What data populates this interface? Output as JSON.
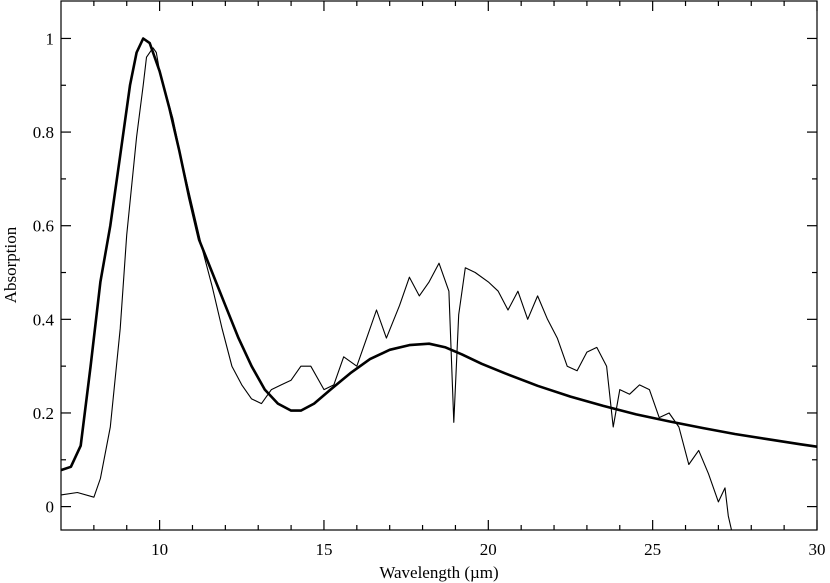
{
  "chart_data": {
    "type": "line",
    "xlabel": "Wavelength (µm)",
    "ylabel": "Absorption",
    "xlim": [
      7,
      30
    ],
    "ylim": [
      -0.05,
      1.08
    ],
    "xticks": [
      10,
      15,
      20,
      25,
      30
    ],
    "yticks": [
      0,
      0.2,
      0.4,
      0.6,
      0.8,
      1
    ],
    "ytick_labels": [
      "0",
      "0.2",
      "0.4",
      "0.6",
      "0.8",
      "1"
    ],
    "grid": false,
    "legend": "none",
    "series": [
      {
        "style": "thick-smooth",
        "x": [
          7.0,
          7.3,
          7.6,
          7.9,
          8.2,
          8.5,
          8.8,
          9.1,
          9.3,
          9.5,
          9.7,
          10.0,
          10.3,
          10.6,
          10.9,
          11.2,
          11.6,
          12.0,
          12.4,
          12.8,
          13.2,
          13.6,
          14.0,
          14.3,
          14.7,
          15.2,
          15.8,
          16.4,
          17.0,
          17.6,
          18.2,
          18.7,
          19.2,
          19.8,
          20.5,
          21.5,
          22.5,
          23.5,
          24.5,
          25.5,
          26.5,
          27.5,
          28.5,
          29.5,
          30.0
        ],
        "y": [
          0.078,
          0.085,
          0.13,
          0.3,
          0.48,
          0.6,
          0.75,
          0.9,
          0.97,
          1.0,
          0.99,
          0.93,
          0.85,
          0.76,
          0.66,
          0.57,
          0.5,
          0.43,
          0.36,
          0.3,
          0.25,
          0.22,
          0.205,
          0.205,
          0.22,
          0.25,
          0.285,
          0.315,
          0.335,
          0.345,
          0.348,
          0.34,
          0.325,
          0.305,
          0.285,
          0.258,
          0.235,
          0.215,
          0.197,
          0.182,
          0.168,
          0.155,
          0.144,
          0.133,
          0.128
        ]
      },
      {
        "style": "thin-noisy",
        "x": [
          7.0,
          7.5,
          8.0,
          8.2,
          8.5,
          8.8,
          9.0,
          9.3,
          9.5,
          9.6,
          9.8,
          9.9,
          10.0,
          10.2,
          10.4,
          10.7,
          11.0,
          11.3,
          11.6,
          11.9,
          12.2,
          12.5,
          12.8,
          13.1,
          13.4,
          13.7,
          14.0,
          14.3,
          14.6,
          15.0,
          15.3,
          15.6,
          16.0,
          16.3,
          16.6,
          16.9,
          17.3,
          17.6,
          17.9,
          18.2,
          18.5,
          18.8,
          18.95,
          19.1,
          19.3,
          19.6,
          20.0,
          20.3,
          20.6,
          20.9,
          21.2,
          21.5,
          21.8,
          22.1,
          22.4,
          22.7,
          23.0,
          23.3,
          23.6,
          23.8,
          24.0,
          24.3,
          24.6,
          24.9,
          25.2,
          25.5,
          25.8,
          26.1,
          26.4,
          26.7,
          27.0,
          27.2,
          27.3,
          27.4
        ],
        "y": [
          0.025,
          0.03,
          0.02,
          0.06,
          0.17,
          0.38,
          0.58,
          0.79,
          0.9,
          0.96,
          0.98,
          0.97,
          0.93,
          0.88,
          0.83,
          0.73,
          0.64,
          0.55,
          0.47,
          0.38,
          0.3,
          0.26,
          0.23,
          0.22,
          0.25,
          0.26,
          0.27,
          0.3,
          0.3,
          0.25,
          0.26,
          0.32,
          0.3,
          0.36,
          0.42,
          0.36,
          0.43,
          0.49,
          0.45,
          0.48,
          0.52,
          0.46,
          0.18,
          0.41,
          0.51,
          0.5,
          0.48,
          0.46,
          0.42,
          0.46,
          0.4,
          0.45,
          0.4,
          0.36,
          0.3,
          0.29,
          0.33,
          0.34,
          0.3,
          0.17,
          0.25,
          0.24,
          0.26,
          0.25,
          0.19,
          0.2,
          0.17,
          0.09,
          0.12,
          0.07,
          0.01,
          0.04,
          -0.02,
          -0.05
        ]
      }
    ]
  }
}
